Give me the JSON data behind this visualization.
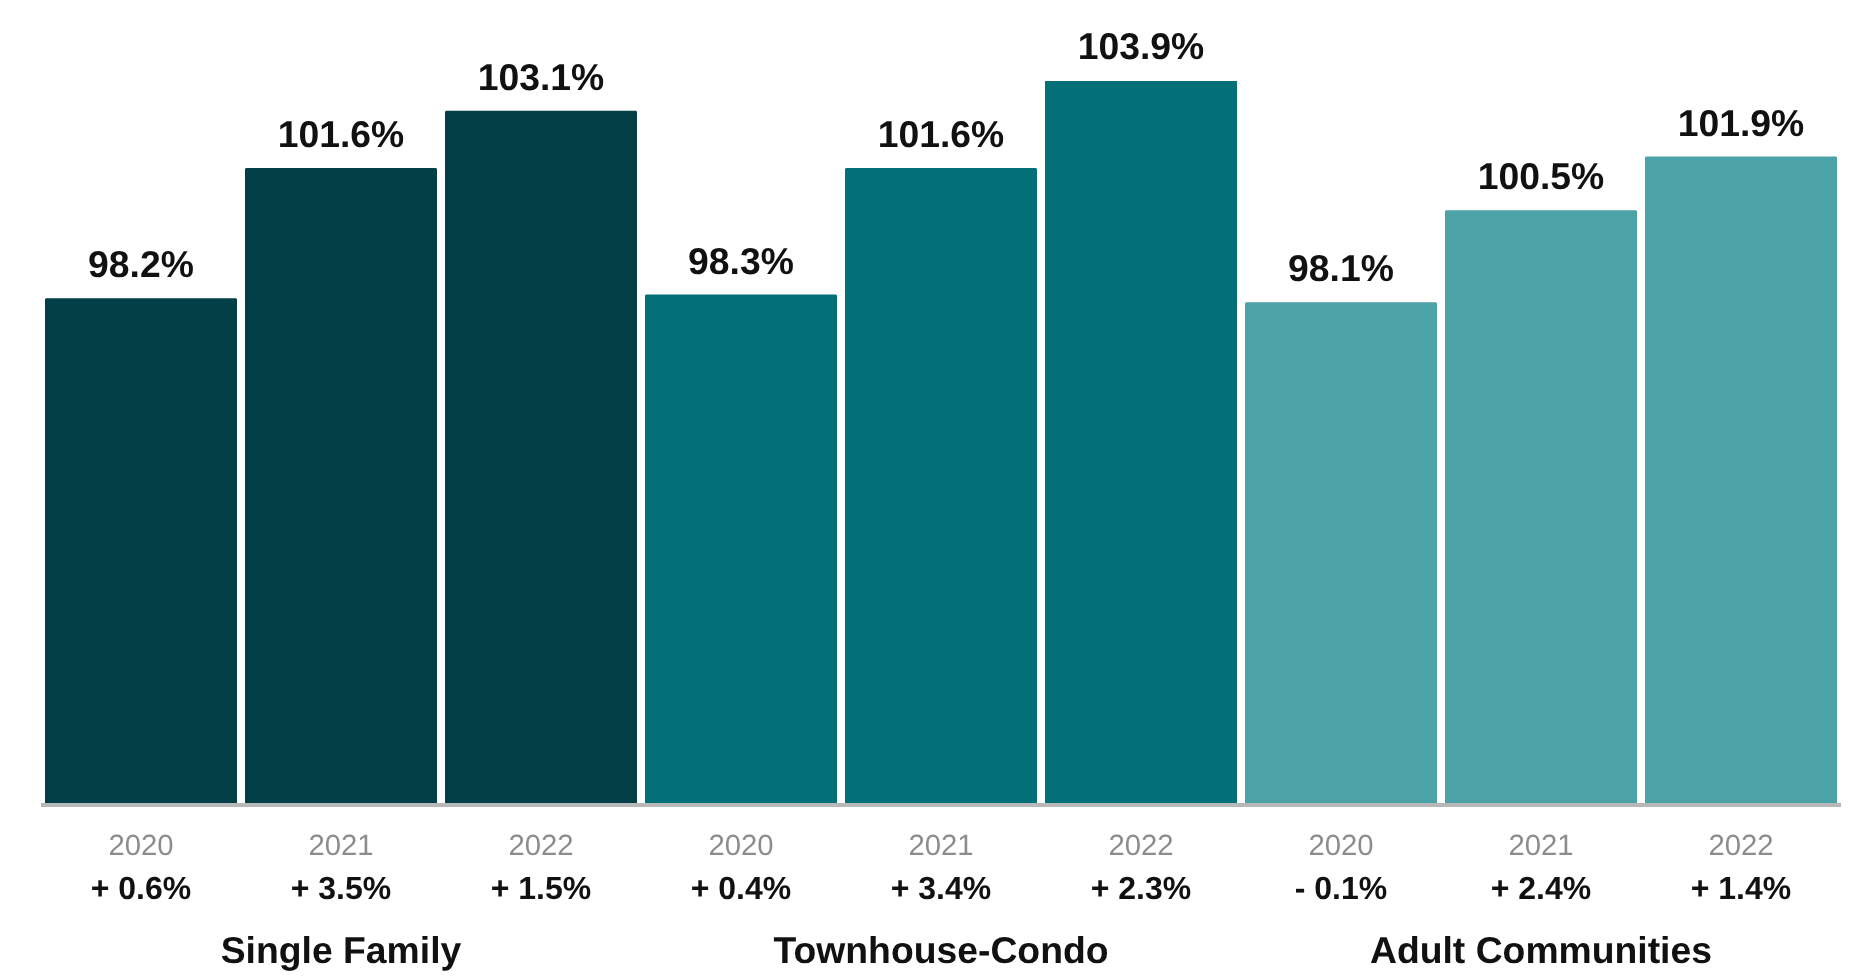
{
  "chart_data": {
    "type": "bar",
    "categories": [
      "Single Family",
      "Townhouse-Condo",
      "Adult Communities"
    ],
    "series": [
      {
        "name": "2020",
        "colors": [
          "#033f46",
          "#037077",
          "#4ba3a8"
        ],
        "values": [
          98.2,
          98.3,
          98.1
        ],
        "value_labels": [
          "98.2%",
          "98.3%",
          "98.1%"
        ]
      },
      {
        "name": "2021",
        "colors": [
          "#033f46",
          "#037077",
          "#4ba3a8"
        ],
        "values": [
          101.6,
          101.6,
          100.5
        ],
        "value_labels": [
          "101.6%",
          "101.6%",
          "100.5%"
        ]
      },
      {
        "name": "2022",
        "colors": [
          "#033f46",
          "#037077",
          "#4ba3a8"
        ],
        "values": [
          103.1,
          103.9,
          101.9
        ],
        "value_labels": [
          "103.1%",
          "103.9%",
          "101.9%"
        ]
      }
    ],
    "ylim": [
      85,
      103.9
    ],
    "annotations": [
      "+ 0.6%",
      "+ 3.5%",
      "+ 1.5%",
      "+ 0.4%",
      "+ 3.4%",
      "+ 2.3%",
      "- 0.1%",
      "+ 2.4%",
      "+ 1.4%"
    ]
  }
}
